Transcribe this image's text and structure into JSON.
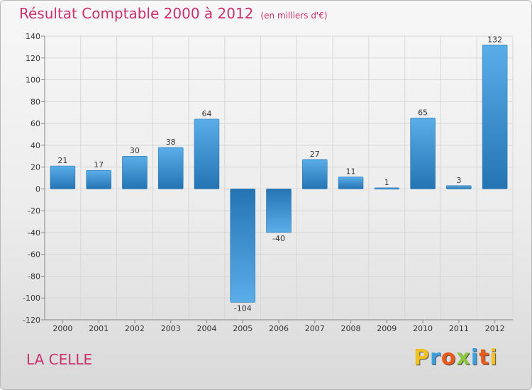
{
  "header": {
    "title": "Résultat Comptable 2000 à 2012",
    "unit": "(en milliers d'€)"
  },
  "footer": {
    "commune": "LA CELLE",
    "logo_letters": [
      "P",
      "r",
      "o",
      "x",
      "i",
      "t",
      "i"
    ],
    "logo_colors": [
      "#f0c020",
      "#3aa0e0",
      "#e85a1c",
      "#8cc63f",
      "#3aa0e0",
      "#e85a1c",
      "#f0c020"
    ]
  },
  "chart_data": {
    "type": "bar",
    "title": "Résultat Comptable 2000 à 2012",
    "subtitle": "(en milliers d'€)",
    "xlabel": "",
    "ylabel": "",
    "categories": [
      "2000",
      "2001",
      "2002",
      "2003",
      "2004",
      "2005",
      "2006",
      "2007",
      "2008",
      "2009",
      "2010",
      "2011",
      "2012"
    ],
    "values": [
      21,
      17,
      30,
      38,
      64,
      -104,
      -40,
      27,
      11,
      1,
      65,
      3,
      132
    ],
    "value_labels": [
      "21",
      "17",
      "30",
      "38",
      "64",
      "-104",
      "-40",
      "27",
      "11",
      "1",
      "65",
      "3",
      "132"
    ],
    "ylim": [
      -120,
      140
    ],
    "yticks": [
      140,
      120,
      100,
      80,
      60,
      40,
      20,
      0,
      -20,
      -40,
      -60,
      -80,
      -100,
      -120
    ],
    "ytick_labels": [
      "140",
      "120",
      "100",
      "80",
      "60",
      "40",
      "20",
      "0",
      "-20",
      "-40",
      "-60",
      "-80",
      "-100",
      "-120"
    ],
    "grid": true,
    "bar_color_light": "#5aaee8",
    "bar_color_dark": "#2474b4"
  }
}
